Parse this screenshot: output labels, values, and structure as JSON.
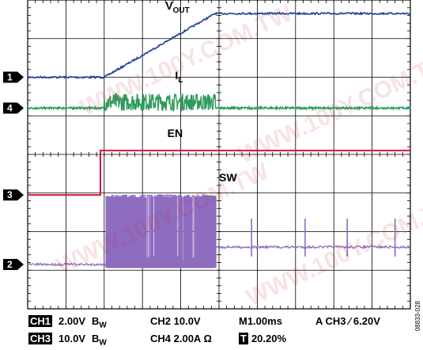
{
  "chart_data": {
    "type": "line",
    "title": "",
    "xlabel": "",
    "ylabel": "",
    "grid": true,
    "time_divisions": 10,
    "voltage_divisions": 8,
    "series": [
      {
        "name": "VOUT",
        "channel_marker": "1",
        "color": "#1f3f9a",
        "description_points_time_div": [
          0,
          2.0,
          4.9,
          10
        ],
        "description_points_level_div": [
          6.0,
          6.0,
          7.65,
          7.65
        ]
      },
      {
        "name": "IL",
        "channel_marker": "4",
        "color": "#2f9a5e",
        "baseline_level_div": 5.2,
        "burst_start_div": 2.0,
        "burst_end_div": 4.9,
        "burst_amplitude_div": 0.45
      },
      {
        "name": "EN",
        "channel_marker": "",
        "color": "#d8133f",
        "low_level_div": 2.95,
        "high_level_div": 4.1,
        "step_time_div": 1.9
      },
      {
        "name": "SW",
        "channel_marker": "3",
        "color": "#8e6cc0",
        "baseline_level_div": 1.15,
        "burst_start_div": 2.05,
        "burst_end_div": 4.9,
        "burst_top_div": 2.95,
        "late_level_div": 1.6,
        "late_spike_times_div": [
          5.85,
          7.25,
          8.35,
          9.6
        ]
      }
    ],
    "markers": {
      "ch1": "1",
      "ch4": "4",
      "ch3": "3",
      "ch2": "2"
    },
    "labels": {
      "vout_main": "V",
      "vout_sub": "OUT",
      "il_main": "I",
      "il_sub": "L",
      "en": "EN",
      "sw": "SW"
    }
  },
  "status": {
    "row1": {
      "ch1_badge": "CH1",
      "ch1_scale": "2.00V",
      "bw1": "B",
      "bw1_sub": "W",
      "ch2": "CH2 10.0V",
      "time": "M1.00ms",
      "trigger": "A CH3 ∕ 6.20V"
    },
    "row2": {
      "ch3_badge": "CH3",
      "ch3_scale": "10.0V",
      "bw3": "B",
      "bw3_sub": "W",
      "ch4": "CH4 2.00A Ω",
      "trig_badge": "T",
      "trig_pos": "20.20%"
    }
  },
  "figure_id": "08833-028",
  "watermark_text": "WWW.100Y.COM.TW"
}
